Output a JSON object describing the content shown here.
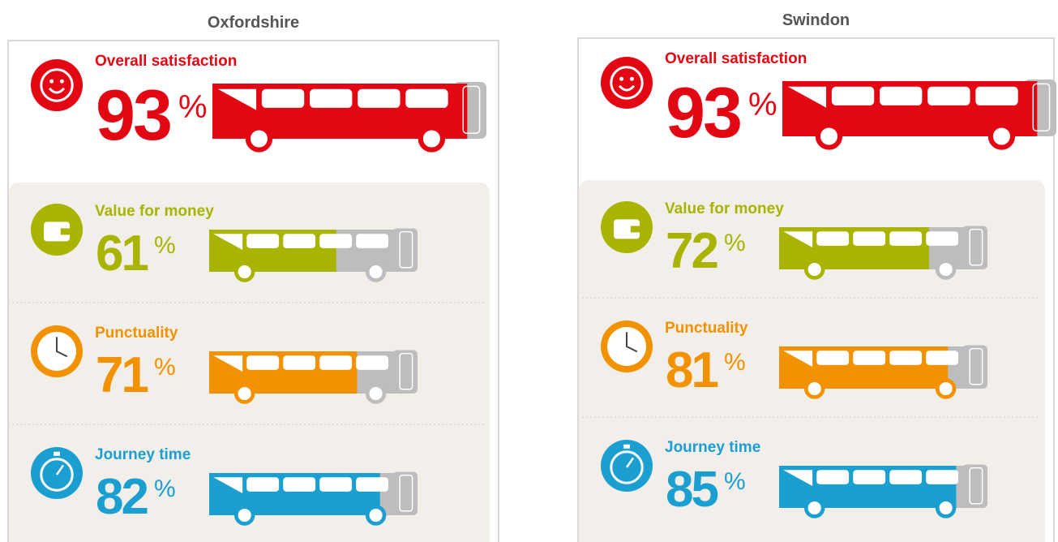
{
  "chart_data": [
    {
      "type": "bar",
      "title": "Oxfordshire",
      "categories": [
        "Overall satisfaction",
        "Value for money",
        "Punctuality",
        "Journey time"
      ],
      "values": [
        93,
        61,
        71,
        82
      ],
      "unit": "%",
      "colors": [
        "#e30613",
        "#a8b400",
        "#f39200",
        "#1a9fd0"
      ],
      "xlim": [
        0,
        100
      ]
    },
    {
      "type": "bar",
      "title": "Swindon",
      "categories": [
        "Overall satisfaction",
        "Value for money",
        "Punctuality",
        "Journey time"
      ],
      "values": [
        93,
        72,
        81,
        85
      ],
      "unit": "%",
      "colors": [
        "#e30613",
        "#a8b400",
        "#f39200",
        "#1a9fd0"
      ],
      "xlim": [
        0,
        100
      ]
    }
  ]
}
